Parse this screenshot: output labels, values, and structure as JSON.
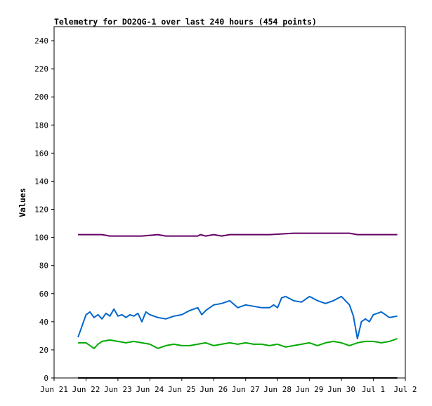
{
  "chart_data": {
    "type": "line",
    "title": "Telemetry for DO2QG-1 over last 240 hours (454 points)",
    "xlabel": "",
    "ylabel": "Values",
    "ylim": [
      0,
      250
    ],
    "xlim": [
      "2024-06-21T00:00",
      "2024-07-02T00:00"
    ],
    "y_ticks": [
      0,
      20,
      40,
      60,
      80,
      100,
      120,
      140,
      160,
      180,
      200,
      220,
      240
    ],
    "x_ticks": [
      {
        "date": "2024-06-21",
        "label": "Jun 21"
      },
      {
        "date": "2024-06-22",
        "label": "Jun 22"
      },
      {
        "date": "2024-06-23",
        "label": "Jun 23"
      },
      {
        "date": "2024-06-24",
        "label": "Jun 24"
      },
      {
        "date": "2024-06-25",
        "label": "Jun 25"
      },
      {
        "date": "2024-06-26",
        "label": "Jun 26"
      },
      {
        "date": "2024-06-27",
        "label": "Jun 27"
      },
      {
        "date": "2024-06-28",
        "label": "Jun 28"
      },
      {
        "date": "2024-06-29",
        "label": "Jun 29"
      },
      {
        "date": "2024-06-30",
        "label": "Jun 30"
      },
      {
        "date": "2024-07-01",
        "label": "Jul 1"
      },
      {
        "date": "2024-07-02",
        "label": "Jul 2"
      }
    ],
    "grid": false,
    "legend": "none",
    "series": [
      {
        "color": "#660066",
        "x": [
          "2024-06-21T18:00",
          "2024-06-22T12:00",
          "2024-06-22T18:00",
          "2024-06-23T12:00",
          "2024-06-23T18:00",
          "2024-06-24T06:00",
          "2024-06-24T12:00",
          "2024-06-25T12:00",
          "2024-06-25T14:00",
          "2024-06-25T18:00",
          "2024-06-26T00:00",
          "2024-06-26T06:00",
          "2024-06-26T12:00",
          "2024-06-27T12:00",
          "2024-06-27T18:00",
          "2024-06-28T12:00",
          "2024-06-29T12:00",
          "2024-06-29T22:00",
          "2024-06-30T06:00",
          "2024-06-30T12:00",
          "2024-07-01T12:00",
          "2024-07-01T18:00"
        ],
        "values": [
          102,
          102,
          101,
          101,
          101,
          102,
          101,
          101,
          102,
          101,
          102,
          101,
          102,
          102,
          102,
          103,
          103,
          103,
          103,
          102,
          102,
          102
        ]
      },
      {
        "color": "#0066cc",
        "x": [
          "2024-06-21T18:00",
          "2024-06-21T21:00",
          "2024-06-22T00:00",
          "2024-06-22T03:00",
          "2024-06-22T06:00",
          "2024-06-22T09:00",
          "2024-06-22T12:00",
          "2024-06-22T15:00",
          "2024-06-22T18:00",
          "2024-06-22T21:00",
          "2024-06-23T00:00",
          "2024-06-23T03:00",
          "2024-06-23T06:00",
          "2024-06-23T09:00",
          "2024-06-23T12:00",
          "2024-06-23T15:00",
          "2024-06-23T18:00",
          "2024-06-23T21:00",
          "2024-06-24T00:00",
          "2024-06-24T06:00",
          "2024-06-24T12:00",
          "2024-06-24T18:00",
          "2024-06-25T00:00",
          "2024-06-25T06:00",
          "2024-06-25T12:00",
          "2024-06-25T15:00",
          "2024-06-25T18:00",
          "2024-06-26T00:00",
          "2024-06-26T06:00",
          "2024-06-26T12:00",
          "2024-06-26T18:00",
          "2024-06-27T00:00",
          "2024-06-27T06:00",
          "2024-06-27T12:00",
          "2024-06-27T18:00",
          "2024-06-27T21:00",
          "2024-06-28T00:00",
          "2024-06-28T03:00",
          "2024-06-28T06:00",
          "2024-06-28T12:00",
          "2024-06-28T18:00",
          "2024-06-29T00:00",
          "2024-06-29T06:00",
          "2024-06-29T12:00",
          "2024-06-29T18:00",
          "2024-06-30T00:00",
          "2024-06-30T06:00",
          "2024-06-30T09:00",
          "2024-06-30T12:00",
          "2024-06-30T15:00",
          "2024-06-30T18:00",
          "2024-06-30T21:00",
          "2024-07-01T00:00",
          "2024-07-01T06:00",
          "2024-07-01T12:00",
          "2024-07-01T18:00"
        ],
        "values": [
          29,
          37,
          45,
          47,
          43,
          45,
          42,
          46,
          44,
          49,
          44,
          45,
          43,
          45,
          44,
          46,
          40,
          47,
          45,
          43,
          42,
          44,
          45,
          48,
          50,
          45,
          48,
          52,
          53,
          55,
          50,
          52,
          51,
          50,
          50,
          52,
          50,
          57,
          58,
          55,
          54,
          58,
          55,
          53,
          55,
          58,
          52,
          44,
          28,
          40,
          42,
          40,
          45,
          47,
          43,
          44
        ]
      },
      {
        "color": "#00aa00",
        "x": [
          "2024-06-21T18:00",
          "2024-06-22T00:00",
          "2024-06-22T06:00",
          "2024-06-22T09:00",
          "2024-06-22T12:00",
          "2024-06-22T18:00",
          "2024-06-23T00:00",
          "2024-06-23T06:00",
          "2024-06-23T12:00",
          "2024-06-23T18:00",
          "2024-06-24T00:00",
          "2024-06-24T06:00",
          "2024-06-24T12:00",
          "2024-06-24T18:00",
          "2024-06-25T00:00",
          "2024-06-25T06:00",
          "2024-06-25T12:00",
          "2024-06-25T18:00",
          "2024-06-26T00:00",
          "2024-06-26T06:00",
          "2024-06-26T12:00",
          "2024-06-26T18:00",
          "2024-06-27T00:00",
          "2024-06-27T06:00",
          "2024-06-27T12:00",
          "2024-06-27T18:00",
          "2024-06-28T00:00",
          "2024-06-28T06:00",
          "2024-06-28T12:00",
          "2024-06-28T18:00",
          "2024-06-29T00:00",
          "2024-06-29T06:00",
          "2024-06-29T12:00",
          "2024-06-29T18:00",
          "2024-06-30T00:00",
          "2024-06-30T06:00",
          "2024-06-30T12:00",
          "2024-06-30T18:00",
          "2024-07-01T00:00",
          "2024-07-01T06:00",
          "2024-07-01T12:00",
          "2024-07-01T18:00"
        ],
        "values": [
          25,
          25,
          21,
          24,
          26,
          27,
          26,
          25,
          26,
          25,
          24,
          21,
          23,
          24,
          23,
          23,
          24,
          25,
          23,
          24,
          25,
          24,
          25,
          24,
          24,
          23,
          24,
          22,
          23,
          24,
          25,
          23,
          25,
          26,
          25,
          23,
          25,
          26,
          26,
          25,
          26,
          28
        ]
      },
      {
        "color": "#000000",
        "x": [
          "2024-06-21T18:00",
          "2024-07-01T18:00"
        ],
        "values": [
          0,
          0
        ]
      }
    ]
  }
}
